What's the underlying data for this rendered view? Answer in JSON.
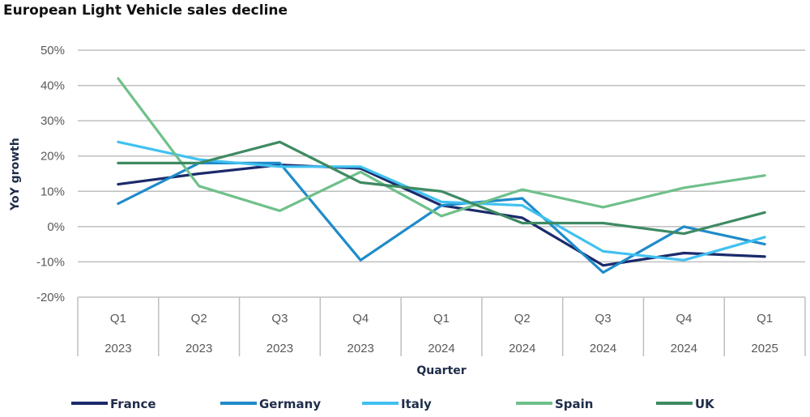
{
  "chart_data": {
    "type": "line",
    "title": "European Light Vehicle sales decline",
    "xlabel": "Quarter",
    "ylabel": "YoY growth",
    "ylim": [
      -20,
      50
    ],
    "yticks": [
      50,
      40,
      30,
      20,
      10,
      0,
      -10,
      -20
    ],
    "ytick_labels": [
      "50%",
      "40%",
      "30%",
      "20%",
      "10%",
      "0%",
      "-10%",
      "-20%"
    ],
    "categories": [
      {
        "quarter": "Q1",
        "year": "2023"
      },
      {
        "quarter": "Q2",
        "year": "2023"
      },
      {
        "quarter": "Q3",
        "year": "2023"
      },
      {
        "quarter": "Q4",
        "year": "2023"
      },
      {
        "quarter": "Q1",
        "year": "2024"
      },
      {
        "quarter": "Q2",
        "year": "2024"
      },
      {
        "quarter": "Q3",
        "year": "2024"
      },
      {
        "quarter": "Q4",
        "year": "2024"
      },
      {
        "quarter": "Q1",
        "year": "2025"
      }
    ],
    "grid": true,
    "legend_position": "bottom",
    "series": [
      {
        "name": "France",
        "color": "#1b2a6b",
        "values": [
          12,
          15,
          17.5,
          16.5,
          6,
          2.5,
          -11,
          -7.5,
          -8.5
        ]
      },
      {
        "name": "Germany",
        "color": "#1f8bc9",
        "values": [
          6.5,
          18,
          18,
          -9.5,
          6,
          8,
          -13,
          0,
          -5
        ]
      },
      {
        "name": "Italy",
        "color": "#41c1f0",
        "values": [
          24,
          19,
          17,
          17,
          7,
          6,
          -7,
          -9.5,
          -3
        ]
      },
      {
        "name": "Spain",
        "color": "#6fc08a",
        "values": [
          42,
          11.5,
          4.5,
          15.5,
          3,
          10.5,
          5.5,
          11,
          14.5
        ]
      },
      {
        "name": "UK",
        "color": "#3e8a62",
        "values": [
          18,
          18,
          24,
          12.5,
          10,
          1,
          1,
          -2,
          4
        ]
      }
    ]
  }
}
